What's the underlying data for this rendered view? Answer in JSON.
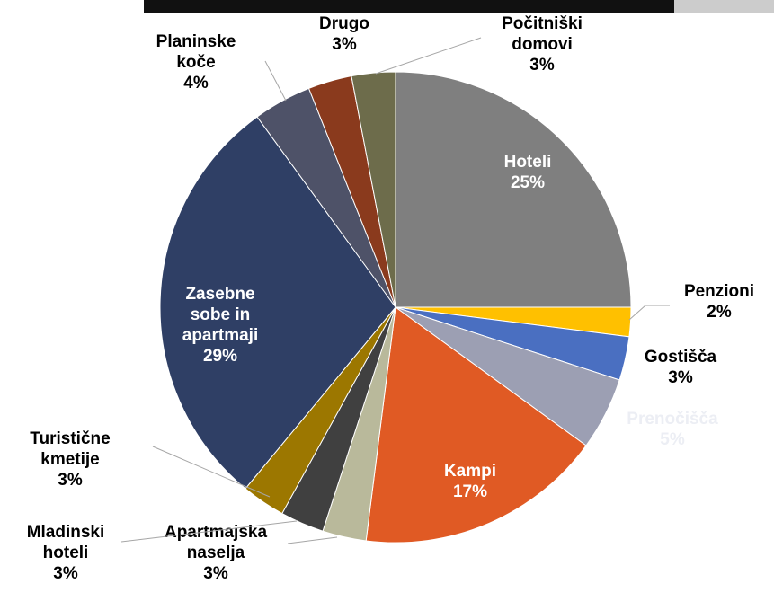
{
  "chart_data": {
    "type": "pie",
    "categories": [
      "Hoteli",
      "Penzioni",
      "Gostišča",
      "Prenočišča",
      "Kampi",
      "Apartmajska naselja",
      "Mladinski hoteli",
      "Turistične kmetije",
      "Zasebne sobe in apartmaji",
      "Planinske koče",
      "Drugo",
      "Počitniški domovi"
    ],
    "values": [
      25,
      2,
      3,
      5,
      17,
      3,
      3,
      3,
      29,
      4,
      3,
      3
    ],
    "value_labels": [
      "25%",
      "2%",
      "3%",
      "5%",
      "17%",
      "3%",
      "3%",
      "3%",
      "29%",
      "4%",
      "3%",
      "3%"
    ],
    "colors": [
      "#7f7f7f",
      "#ffc000",
      "#4a6fc1",
      "#9c9fb3",
      "#e05a24",
      "#b9b99b",
      "#404040",
      "#9c7700",
      "#2f3f65",
      "#4e5268",
      "#8a3a1d",
      "#6d6c4b"
    ]
  }
}
